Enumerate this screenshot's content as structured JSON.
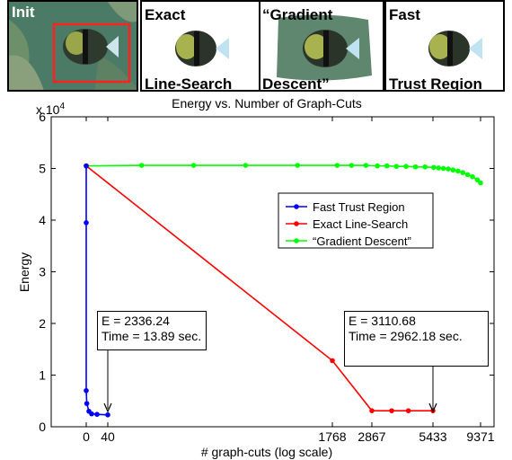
{
  "panels": [
    {
      "label": "Init",
      "style": "init"
    },
    {
      "label": "Exact",
      "sublabel": "Line-Search"
    },
    {
      "label": "“Gradient",
      "sublabel": "Descent”"
    },
    {
      "label": "Fast",
      "sublabel": "Trust Region"
    }
  ],
  "chart_data": {
    "type": "line",
    "title": "Energy vs. Number of Graph-Cuts",
    "xlabel": "# graph-cuts (log scale)",
    "ylabel": "Energy",
    "y_multiplier": "x 10^4",
    "ylim": [
      0,
      6
    ],
    "yticks": [
      0,
      1,
      2,
      3,
      4,
      5,
      6
    ],
    "xticks": [
      {
        "label": "0",
        "value": 0
      },
      {
        "label": "40",
        "value": 40
      },
      {
        "label": "1768",
        "value": 1768
      },
      {
        "label": "2867",
        "value": 2867
      },
      {
        "label": "5433",
        "value": 5433
      },
      {
        "label": "9371",
        "value": 9371
      }
    ],
    "legend_position": "right",
    "series": [
      {
        "name": "Fast Trust Region",
        "color": "#0000ff",
        "points": [
          [
            0,
            5.05
          ],
          [
            0,
            3.95
          ],
          [
            0,
            0.7
          ],
          [
            1,
            0.45
          ],
          [
            5,
            0.3
          ],
          [
            10,
            0.25
          ],
          [
            20,
            0.24
          ],
          [
            40,
            0.23
          ]
        ]
      },
      {
        "name": "Exact Line-Search",
        "color": "#ff0000",
        "points": [
          [
            0,
            5.05
          ],
          [
            1768,
            1.28
          ],
          [
            2867,
            0.31
          ],
          [
            3700,
            0.31
          ],
          [
            4400,
            0.31
          ],
          [
            5433,
            0.31
          ]
        ]
      },
      {
        "name": "“Gradient Descent”",
        "color": "#00ff00",
        "points": [
          [
            0,
            5.05
          ],
          [
            300,
            5.06
          ],
          [
            700,
            5.06
          ],
          [
            1100,
            5.06
          ],
          [
            1500,
            5.06
          ],
          [
            1900,
            5.06
          ],
          [
            2300,
            5.06
          ],
          [
            2700,
            5.06
          ],
          [
            3100,
            5.05
          ],
          [
            3500,
            5.05
          ],
          [
            3900,
            5.04
          ],
          [
            4300,
            5.04
          ],
          [
            4700,
            5.03
          ],
          [
            5100,
            5.03
          ],
          [
            5500,
            5.02
          ],
          [
            5900,
            5.01
          ],
          [
            6300,
            5.0
          ],
          [
            6700,
            4.99
          ],
          [
            7100,
            4.97
          ],
          [
            7500,
            4.95
          ],
          [
            7900,
            4.92
          ],
          [
            8300,
            4.88
          ],
          [
            8700,
            4.84
          ],
          [
            9100,
            4.78
          ],
          [
            9371,
            4.72
          ]
        ]
      }
    ],
    "annotations": [
      {
        "line1": "E = 2336.24",
        "line2": "Time = 13.89 sec."
      },
      {
        "line1": "E = 3110.68",
        "line2": "Time = 2962.18 sec."
      }
    ]
  }
}
